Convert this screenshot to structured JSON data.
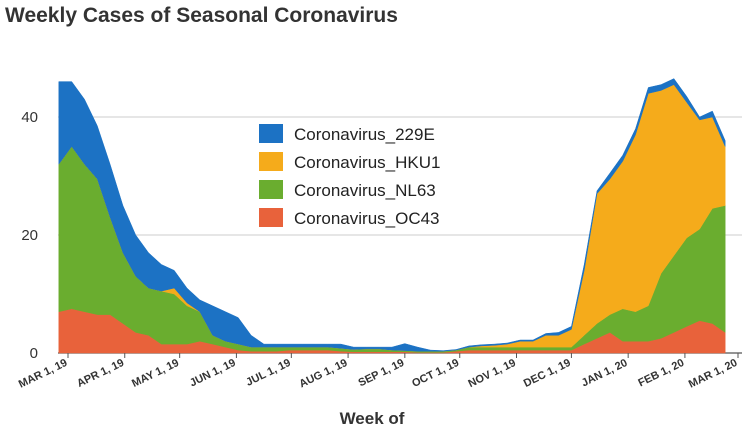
{
  "chart_data": {
    "type": "area",
    "stacked": true,
    "title": "Weekly Cases of Seasonal Coronavirus",
    "xlabel": "Week of",
    "ylabel": "",
    "ylim": [
      0,
      50
    ],
    "yticks": [
      0,
      20,
      40
    ],
    "grid": true,
    "legend_position": "center",
    "x_tick_labels": [
      "MAR 1, 19",
      "APR 1, 19",
      "MAY 1, 19",
      "JUN 1, 19",
      "JUL 1, 19",
      "AUG 1, 19",
      "SEP 1, 19",
      "OCT 1, 19",
      "NOV 1, 19",
      "DEC 1, 19",
      "JAN 1, 20",
      "FEB 1, 20",
      "MAR 1, 20"
    ],
    "x_tick_dates": [
      "2019-03-01",
      "2019-04-01",
      "2019-05-01",
      "2019-06-01",
      "2019-07-01",
      "2019-08-01",
      "2019-09-01",
      "2019-10-01",
      "2019-11-01",
      "2019-12-01",
      "2020-01-01",
      "2020-02-01",
      "2020-03-01"
    ],
    "x": [
      "2019-02-24",
      "2019-03-03",
      "2019-03-10",
      "2019-03-17",
      "2019-03-24",
      "2019-03-31",
      "2019-04-07",
      "2019-04-14",
      "2019-04-21",
      "2019-04-28",
      "2019-05-05",
      "2019-05-12",
      "2019-05-19",
      "2019-05-26",
      "2019-06-02",
      "2019-06-09",
      "2019-06-16",
      "2019-06-23",
      "2019-06-30",
      "2019-07-07",
      "2019-07-14",
      "2019-07-21",
      "2019-07-28",
      "2019-08-04",
      "2019-08-11",
      "2019-08-18",
      "2019-08-25",
      "2019-09-01",
      "2019-09-08",
      "2019-09-15",
      "2019-09-22",
      "2019-09-29",
      "2019-10-06",
      "2019-10-13",
      "2019-10-20",
      "2019-10-27",
      "2019-11-03",
      "2019-11-10",
      "2019-11-17",
      "2019-11-24",
      "2019-12-01",
      "2019-12-08",
      "2019-12-15",
      "2019-12-22",
      "2019-12-29",
      "2020-01-05",
      "2020-01-12",
      "2020-01-19",
      "2020-01-26",
      "2020-02-02",
      "2020-02-09",
      "2020-02-16",
      "2020-02-23"
    ],
    "series": [
      {
        "name": "Coronavirus_OC43",
        "color": "#e8623b",
        "values": [
          7,
          7.5,
          7,
          6.5,
          6.5,
          5,
          3.5,
          3,
          1.5,
          1.5,
          1.5,
          2,
          1.5,
          1,
          0.5,
          0.3,
          0.3,
          0.3,
          0.5,
          0.5,
          0.5,
          0.5,
          0.3,
          0.2,
          0.2,
          0.2,
          0.2,
          0.2,
          0.1,
          0.1,
          0.1,
          0.3,
          0.5,
          0.5,
          0.5,
          0.5,
          0.5,
          0.5,
          0.5,
          0.5,
          0.5,
          1.5,
          2.5,
          3.5,
          2,
          2,
          2,
          2.5,
          3.5,
          4.5,
          5.5,
          5,
          3.5
        ]
      },
      {
        "name": "Coronavirus_NL63",
        "color": "#6aad2f",
        "values": [
          25,
          27.5,
          25,
          23,
          16.5,
          12,
          9.5,
          8,
          9,
          8.5,
          6.5,
          5,
          1.5,
          1,
          1,
          0.7,
          0.7,
          0.7,
          0.5,
          0.5,
          0.5,
          0.5,
          0.5,
          0.4,
          0.5,
          0.5,
          0.3,
          0.2,
          0.2,
          0.2,
          0.2,
          0.2,
          0.5,
          0.5,
          0.5,
          0.5,
          0.5,
          0.5,
          0.5,
          0.5,
          0.5,
          1.5,
          2.5,
          3,
          5.5,
          5,
          6,
          11,
          13,
          15,
          15.5,
          19.5,
          21.5
        ]
      },
      {
        "name": "Coronavirus_HKU1",
        "color": "#f5ab1b",
        "values": [
          0,
          0,
          0,
          0,
          0,
          0,
          0,
          0,
          0,
          1,
          0.5,
          0,
          0,
          0,
          0,
          0,
          0,
          0,
          0,
          0,
          0,
          0,
          0,
          0,
          0,
          0,
          0,
          0,
          0,
          0,
          0,
          0,
          0,
          0.2,
          0.3,
          0.5,
          1,
          1,
          2,
          2,
          3,
          11,
          22,
          23,
          25,
          30,
          36,
          31,
          29,
          23,
          18.5,
          15.5,
          10
        ]
      },
      {
        "name": "Coronavirus_229E",
        "color": "#1c72c4",
        "values": [
          14,
          11,
          11,
          9,
          9,
          8,
          7,
          6,
          4.5,
          3,
          2.5,
          2,
          5,
          5,
          4.5,
          2,
          0.5,
          0.5,
          0.5,
          0.5,
          0.5,
          0.5,
          0.7,
          0.4,
          0.3,
          0.3,
          0.5,
          1.2,
          0.7,
          0.2,
          0.1,
          0.1,
          0.2,
          0.2,
          0.2,
          0.2,
          0.2,
          0.2,
          0.3,
          0.5,
          0.5,
          1,
          0.5,
          1,
          1,
          1,
          1,
          1,
          1,
          1,
          0.5,
          1,
          1
        ]
      }
    ]
  }
}
